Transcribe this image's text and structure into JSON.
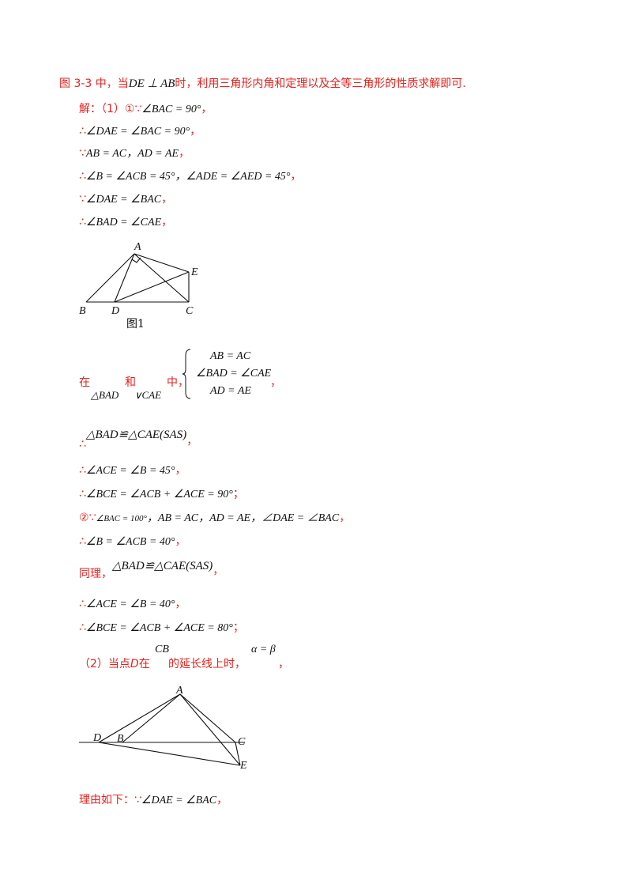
{
  "intro": {
    "prefix": "图 3-3 中，当",
    "math": "DE ⊥ AB",
    "suffix": "时，利用三角形内角和定理以及全等三角形的性质求解即可."
  },
  "solution": {
    "l1_label": "解：（1）①∵",
    "l1_math": "∠BAC = 90°",
    "l1_end": "，",
    "l2_sym": "∴",
    "l2_math": "∠DAE = ∠BAC = 90°",
    "l2_end": "，",
    "l3_sym": "∵",
    "l3_math": "AB = AC，AD = AE",
    "l3_end": "，",
    "l4_sym": "∴",
    "l4_math": "∠B = ∠ACB = 45°，∠ADE = ∠AED = 45°",
    "l4_end": "，",
    "l5_sym": "∵",
    "l5_math": "∠DAE = ∠BAC",
    "l5_end": "，",
    "l6_sym": "∴",
    "l6_math": "∠BAD = ∠CAE",
    "l6_end": "，"
  },
  "figure1": {
    "caption": "图1",
    "labels": {
      "A": "A",
      "B": "B",
      "C": "C",
      "D": "D",
      "E": "E"
    }
  },
  "congruence": {
    "zai": "在",
    "tri1": "△BAD",
    "he": "和",
    "tri2": "∨CAE",
    "zhong": "中，",
    "cond1": "AB = AC",
    "cond2": "∠BAD = ∠CAE",
    "cond3": "AD = AE",
    "end": "，"
  },
  "results": {
    "r1_sym": "∴",
    "r1_math": "△BAD≌△CAE(SAS)",
    "r1_end": "，",
    "r2_sym": "∴",
    "r2_math": "∠ACE = ∠B = 45°",
    "r2_end": "，",
    "r3_sym": "∴",
    "r3_math": "∠BCE = ∠ACB + ∠ACE = 90°",
    "r3_end": "；",
    "r4_label": "②∵",
    "r4_math_small": "∠BAC = 100°",
    "r4_math": "，AB = AC，AD = AE，∠DAE = ∠BAC",
    "r4_end": "，",
    "r5_sym": "∴",
    "r5_math": "∠B = ∠ACB = 40°",
    "r5_end": "，",
    "r6_label": "同理，",
    "r6_math": "△BAD≌△CAE(SAS)",
    "r6_end": "，",
    "r7_sym": "∴",
    "r7_math": "∠ACE = ∠B = 40°",
    "r7_end": "，",
    "r8_sym": "∴",
    "r8_math": "∠BCE = ∠ACB + ∠ACE = 80°",
    "r8_end": "；"
  },
  "part2": {
    "prefix": "（2）当点",
    "point": "D",
    "zai": "在",
    "seg": "CB",
    "suffix": "的延长线上时，",
    "eq": "α = β",
    "end": "，"
  },
  "figure2": {
    "labels": {
      "A": "A",
      "B": "B",
      "C": "C",
      "D": "D",
      "E": "E"
    }
  },
  "reason": {
    "label": "理由如下：∵",
    "math": "∠DAE = ∠BAC",
    "end": "，"
  },
  "colors": {
    "accent": "#e8201c",
    "text": "#111111"
  }
}
